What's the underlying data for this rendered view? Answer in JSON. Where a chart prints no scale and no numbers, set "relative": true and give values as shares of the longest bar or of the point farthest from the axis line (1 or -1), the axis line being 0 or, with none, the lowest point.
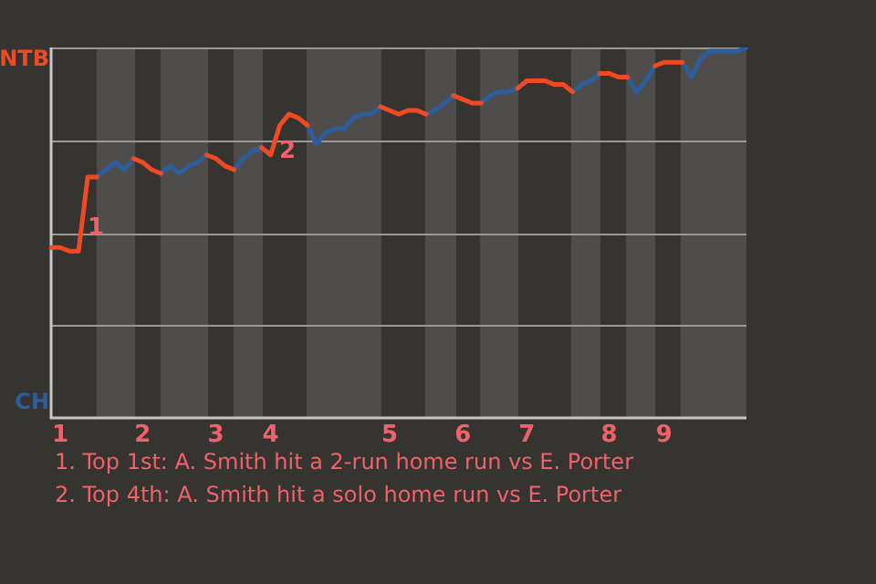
{
  "chart_data": {
    "type": "line",
    "relative": true,
    "categories": [
      null,
      "1",
      null,
      null,
      null,
      null,
      null,
      null,
      null,
      null,
      "2",
      null,
      null,
      null,
      null,
      null,
      null,
      null,
      "3",
      null,
      null,
      null,
      null,
      null,
      "4",
      null,
      null,
      null,
      null,
      null,
      null,
      null,
      null,
      null,
      null,
      null,
      null,
      "5",
      null,
      null,
      null,
      null,
      null,
      null,
      null,
      "6",
      null,
      null,
      null,
      null,
      null,
      null,
      "7",
      null,
      null,
      null,
      null,
      null,
      null,
      null,
      null,
      "8",
      null,
      null,
      null,
      null,
      null,
      "9",
      null,
      null,
      null,
      null,
      null,
      null,
      null,
      null,
      null
    ],
    "series": [
      {
        "name": "NTB",
        "color": "#f04a23",
        "values": [
          0.46,
          0.46,
          0.45,
          0.45,
          0.65,
          0.65,
          null,
          null,
          null,
          0.7,
          0.69,
          0.67,
          0.66,
          null,
          null,
          null,
          null,
          0.71,
          0.7,
          0.68,
          0.67,
          null,
          null,
          0.73,
          0.71,
          0.79,
          0.82,
          0.81,
          0.79,
          null,
          null,
          null,
          null,
          null,
          null,
          null,
          0.84,
          0.83,
          0.82,
          0.83,
          0.83,
          0.82,
          null,
          null,
          0.87,
          0.86,
          0.85,
          0.85,
          null,
          null,
          null,
          0.89,
          0.91,
          0.91,
          0.91,
          0.9,
          0.9,
          0.88,
          null,
          null,
          0.93,
          0.93,
          0.92,
          0.92,
          null,
          null,
          0.95,
          0.96,
          0.96,
          0.96,
          null,
          null,
          null,
          null,
          null,
          null,
          null
        ]
      },
      {
        "name": "CH",
        "color": "#2e5d9c",
        "values": [
          null,
          null,
          null,
          null,
          null,
          0.65,
          0.67,
          0.69,
          0.67,
          0.7,
          null,
          null,
          0.66,
          0.68,
          0.66,
          0.68,
          0.69,
          0.71,
          null,
          null,
          0.67,
          0.7,
          0.72,
          0.73,
          null,
          null,
          null,
          null,
          0.79,
          0.74,
          0.77,
          0.78,
          0.78,
          0.81,
          0.82,
          0.82,
          0.84,
          null,
          null,
          null,
          null,
          0.82,
          0.83,
          0.85,
          0.87,
          null,
          null,
          0.85,
          0.87,
          0.88,
          0.88,
          0.89,
          null,
          null,
          null,
          null,
          null,
          0.88,
          0.9,
          0.91,
          0.93,
          null,
          null,
          0.92,
          0.88,
          0.91,
          0.95,
          null,
          null,
          0.96,
          0.92,
          0.97,
          0.99,
          0.99,
          0.99,
          0.99,
          1.0
        ]
      }
    ],
    "grid": "y",
    "legend": "left",
    "marker": "none",
    "line_style": "solid",
    "annotations": [
      "1",
      "2",
      "1. Top 1st: A. Smith hit a 2-run home run vs E. Porter",
      "2. Top 4th: A. Smith hit a solo home run vs E. Porter"
    ]
  }
}
